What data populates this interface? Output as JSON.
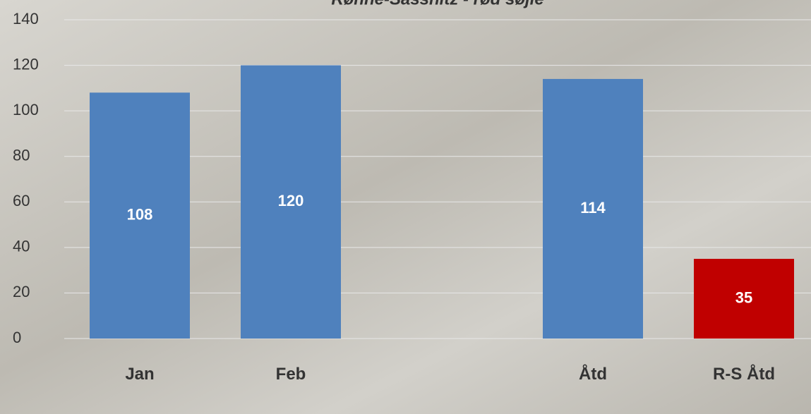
{
  "chart_data": {
    "type": "bar",
    "title": "Rønne-Sassnitz - rød søjle",
    "categories": [
      "Jan",
      "Feb",
      null,
      "Åtd",
      "R-S Åtd"
    ],
    "values": [
      108,
      120,
      null,
      114,
      35
    ],
    "colors": [
      "#4f81bd",
      "#4f81bd",
      null,
      "#4f81bd",
      "#c00000"
    ],
    "ylim": [
      0,
      140
    ],
    "yticks": [
      0,
      20,
      40,
      60,
      80,
      100,
      120,
      140
    ],
    "grid": true
  }
}
